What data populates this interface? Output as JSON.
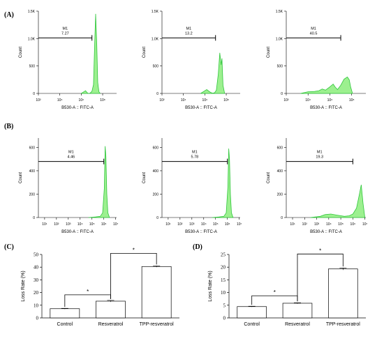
{
  "panels": {
    "a": "(A)",
    "b": "(B)",
    "c": "(C)",
    "d": "(D)"
  },
  "colors": {
    "fill": "#9cf08f",
    "stroke": "#2fc63b",
    "bar_fill": "#ffffff",
    "axis": "#000000"
  },
  "chart_data": [
    {
      "panel": "A",
      "type": "area",
      "xscale": "log",
      "xlabel": "B530-A :: FITC-A",
      "ylabel": "Count",
      "xlim": [
        100,
        2000000000
      ],
      "ylim": [
        0,
        1500
      ],
      "x_ticks": [
        "10²",
        "10⁴",
        "10⁶",
        "10⁸"
      ],
      "y_ticks": [
        "0",
        "500",
        "1.0K",
        "1.5K"
      ],
      "gate": {
        "name": "M1",
        "value": "7.27",
        "from": 100,
        "to": 10000000
      },
      "x": [
        1000000,
        2500000,
        4000000,
        5000000,
        6000000,
        8000000,
        10000000,
        14000000,
        18000000,
        22000000,
        28000000,
        35000000,
        45000000,
        60000000
      ],
      "y": [
        0,
        50,
        5,
        0,
        0,
        20,
        40,
        160,
        900,
        1450,
        900,
        200,
        30,
        0
      ]
    },
    {
      "panel": "A",
      "type": "area",
      "xscale": "log",
      "xlabel": "B530-A :: FITC-A",
      "ylabel": "Count",
      "xlim": [
        100,
        2000000000
      ],
      "ylim": [
        0,
        1500
      ],
      "x_ticks": [
        "10²",
        "10⁴",
        "10⁶",
        "10⁸"
      ],
      "y_ticks": [
        "0",
        "500",
        "1.0K",
        "1.5K"
      ],
      "gate": {
        "name": "M1",
        "value": "13.2",
        "from": 100,
        "to": 10000000
      },
      "x": [
        400000,
        1500000,
        3000000,
        5000000,
        8000000,
        12000000,
        18000000,
        25000000,
        33000000,
        40000000,
        50000000,
        70000000
      ],
      "y": [
        0,
        70,
        25,
        5,
        10,
        60,
        350,
        740,
        520,
        640,
        150,
        0
      ]
    },
    {
      "panel": "A",
      "type": "area",
      "xscale": "log",
      "xlabel": "B530-A :: FITC-A",
      "ylabel": "Count",
      "xlim": [
        100,
        2000000000
      ],
      "ylim": [
        0,
        1500
      ],
      "x_ticks": [
        "10²",
        "10⁴",
        "10⁶",
        "10⁸"
      ],
      "y_ticks": [
        "0",
        "500",
        "1.0K",
        "1.5K"
      ],
      "gate": {
        "name": "M1",
        "value": "40.5",
        "from": 100,
        "to": 10000000
      },
      "x": [
        2000,
        10000,
        40000,
        100000,
        200000,
        400000,
        1000000,
        2000000,
        3000000,
        5000000,
        10000000,
        20000000,
        40000000,
        60000000,
        80000000,
        120000000
      ],
      "y": [
        0,
        30,
        35,
        50,
        80,
        60,
        120,
        170,
        120,
        70,
        150,
        260,
        300,
        250,
        120,
        0
      ]
    },
    {
      "panel": "B",
      "type": "area",
      "xscale": "log",
      "xlabel": "B530-A :: FITC-A",
      "ylabel": "Count",
      "xlim": [
        3,
        12000000
      ],
      "ylim": [
        0,
        680
      ],
      "x_ticks": [
        "10¹",
        "10²",
        "10³",
        "10⁴",
        "10⁵",
        "10⁶",
        "10⁷"
      ],
      "y_ticks": [
        "0",
        "200",
        "400",
        "600"
      ],
      "gate": {
        "name": "M1",
        "value": "4.46",
        "from": 3,
        "to": 1000000
      },
      "x": [
        50000,
        200000,
        500000,
        800000,
        1100000,
        1300000,
        1500000,
        1800000,
        2200000,
        3000000
      ],
      "y": [
        0,
        5,
        10,
        40,
        250,
        610,
        520,
        200,
        40,
        0
      ]
    },
    {
      "panel": "B",
      "type": "area",
      "xscale": "log",
      "xlabel": "B530-A :: FITC-A",
      "ylabel": "Count",
      "xlim": [
        3,
        12000000
      ],
      "ylim": [
        0,
        680
      ],
      "x_ticks": [
        "10¹",
        "10²",
        "10³",
        "10⁴",
        "10⁵",
        "10⁶",
        "10⁷"
      ],
      "y_ticks": [
        "0",
        "200",
        "400",
        "600"
      ],
      "gate": {
        "name": "M1",
        "value": "5.78",
        "from": 3,
        "to": 1000000
      },
      "x": [
        50000,
        200000,
        500000,
        800000,
        1100000,
        1300000,
        1500000,
        1800000,
        2200000,
        3000000
      ],
      "y": [
        0,
        5,
        10,
        40,
        260,
        590,
        500,
        200,
        40,
        0
      ]
    },
    {
      "panel": "B",
      "type": "area",
      "xscale": "log",
      "xlabel": "B530-A :: FITC-A",
      "ylabel": "Count",
      "xlim": [
        3,
        12000000
      ],
      "ylim": [
        0,
        680
      ],
      "x_ticks": [
        "10¹",
        "10²",
        "10³",
        "10⁴",
        "10⁵",
        "10⁶",
        "10⁷"
      ],
      "y_ticks": [
        "0",
        "200",
        "400",
        "600"
      ],
      "gate": {
        "name": "M1",
        "value": "19.3",
        "from": 3,
        "to": 1000000
      },
      "x": [
        300,
        2000,
        5000,
        15000,
        50000,
        200000,
        500000,
        1000000,
        2000000,
        3500000,
        5000000,
        7000000,
        10000000
      ],
      "y": [
        0,
        10,
        25,
        30,
        20,
        10,
        15,
        30,
        80,
        200,
        280,
        120,
        0
      ]
    },
    {
      "panel": "C",
      "type": "bar",
      "categories": [
        "Control",
        "Resveratrol",
        "TPP-resveratrol"
      ],
      "values": [
        7.27,
        13.2,
        40.5
      ],
      "errors": [
        0.3,
        0.6,
        0.5
      ],
      "ylabel": "Loss Rate (%)",
      "ylim": [
        0,
        50
      ],
      "y_ticks": [
        "0",
        "10",
        "20",
        "30",
        "40",
        "50"
      ],
      "significance": [
        {
          "from": 0,
          "to": 1,
          "label": "*"
        },
        {
          "from": 1,
          "to": 2,
          "label": "*"
        }
      ]
    },
    {
      "panel": "D",
      "type": "bar",
      "categories": [
        "Control",
        "Resveratrol",
        "TPP-resveratrol"
      ],
      "values": [
        4.46,
        5.78,
        19.3
      ],
      "errors": [
        0.15,
        0.2,
        0.4
      ],
      "ylabel": "Loss Rate (%)",
      "ylim": [
        0,
        25
      ],
      "y_ticks": [
        "0",
        "5",
        "10",
        "15",
        "20",
        "25"
      ],
      "significance": [
        {
          "from": 0,
          "to": 1,
          "label": "*"
        },
        {
          "from": 1,
          "to": 2,
          "label": "*"
        }
      ]
    }
  ]
}
